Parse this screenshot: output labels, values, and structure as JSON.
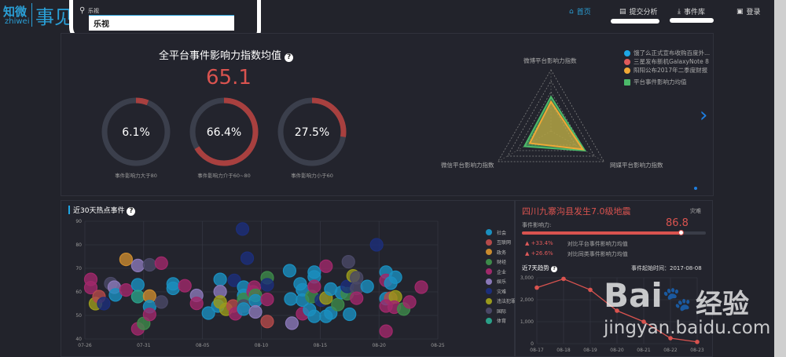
{
  "header": {
    "logo_cn": "知微",
    "logo_en": "zhiwei",
    "logo_brand": "事见",
    "search_label": "乐视",
    "search_value": "乐视",
    "nav": [
      {
        "label": "首页",
        "icon": "home-icon"
      },
      {
        "label": "提交分析",
        "icon": "document-edit-icon"
      },
      {
        "label": "事件库",
        "icon": "download-icon"
      },
      {
        "label": "登录",
        "icon": "user-icon"
      }
    ]
  },
  "summary": {
    "title": "全平台事件影响力指数均值",
    "value": "65.1",
    "gauges": [
      {
        "pct_text": "6.1%",
        "pct": 6.1,
        "label": "事件影响力大于80"
      },
      {
        "pct_text": "66.4%",
        "pct": 66.4,
        "label": "事件影响力介于60~80"
      },
      {
        "pct_text": "27.5%",
        "pct": 27.5,
        "label": "事件影响力小于60"
      }
    ]
  },
  "radar": {
    "axes": [
      "微博平台影响力指数",
      "网媒平台影响力指数",
      "微信平台影响力指数"
    ],
    "legend": [
      {
        "name": "饿了么正式宣布收购百度外...",
        "color": "#1ea7e6"
      },
      {
        "name": "三星发布新机GalaxyNote 8",
        "color": "#e05a5a"
      },
      {
        "name": "阳阳公布2017年二季度财报",
        "color": "#f0a836"
      },
      {
        "name": "平台事件影响力均值",
        "color": "#4cba6a"
      }
    ],
    "series": [
      {
        "name": "平台事件影响力均值",
        "values": [
          0.56,
          0.64,
          0.5
        ],
        "color": "#4cba6a"
      },
      {
        "name": "阳阳公布2017年二季度财报",
        "values": [
          0.48,
          0.6,
          0.4
        ],
        "color": "#f0a836"
      }
    ]
  },
  "hot": {
    "title": "近30天热点事件",
    "chart_data": {
      "type": "scatter",
      "title": "近30天热点事件",
      "x_ticks": [
        "07-26",
        "07-31",
        "08-05",
        "08-10",
        "08-15",
        "08-20",
        "08-25"
      ],
      "y_ticks": [
        "40",
        "50",
        "60",
        "70",
        "80",
        "90"
      ],
      "ylim": [
        40,
        90
      ],
      "xlim_days": [
        0,
        30
      ],
      "categories": [
        {
          "name": "社会",
          "color": "#1a8fbf"
        },
        {
          "name": "互联网",
          "color": "#b44a4a"
        },
        {
          "name": "政务",
          "color": "#c98a2e"
        },
        {
          "name": "财经",
          "color": "#3d8a4a"
        },
        {
          "name": "企业",
          "color": "#a0286a"
        },
        {
          "name": "娱乐",
          "color": "#8a78b8"
        },
        {
          "name": "灾难",
          "color": "#1c2e7a"
        },
        {
          "name": "违法犯罪",
          "color": "#9a9a1c"
        },
        {
          "name": "国际",
          "color": "#4a4866"
        },
        {
          "name": "体育",
          "color": "#2aa088"
        }
      ],
      "points": [
        [
          0.5,
          65.3,
          4
        ],
        [
          0.5,
          61.8,
          4
        ],
        [
          0.9,
          55,
          7
        ],
        [
          1.2,
          58,
          1
        ],
        [
          1.6,
          55,
          6
        ],
        [
          2.2,
          63.5,
          8
        ],
        [
          2.5,
          62,
          5
        ],
        [
          2.6,
          58.7,
          0
        ],
        [
          3.5,
          73.8,
          2
        ],
        [
          3.5,
          60.8,
          4
        ],
        [
          4.5,
          71.2,
          5
        ],
        [
          4.5,
          63,
          0
        ],
        [
          4.5,
          58,
          9
        ],
        [
          4.5,
          44.3,
          4
        ],
        [
          5,
          46.6,
          3
        ],
        [
          5.5,
          71.5,
          8
        ],
        [
          6.5,
          72.2,
          4
        ],
        [
          5.5,
          58.2,
          2
        ],
        [
          5.5,
          53.7,
          0
        ],
        [
          5.5,
          50.4,
          4
        ],
        [
          6.5,
          55.7,
          8
        ],
        [
          7.5,
          63.4,
          0
        ],
        [
          7.5,
          61.5,
          0
        ],
        [
          8.5,
          62.6,
          4
        ],
        [
          9.5,
          58.5,
          5
        ],
        [
          9.5,
          55.1,
          4
        ],
        [
          10.5,
          51,
          0
        ],
        [
          11.3,
          54,
          0
        ],
        [
          11.5,
          65.3,
          0
        ],
        [
          11.5,
          60.1,
          5
        ],
        [
          11.5,
          55.7,
          7
        ],
        [
          12,
          52.6,
          7
        ],
        [
          12.6,
          54,
          1
        ],
        [
          12.8,
          50.7,
          4
        ],
        [
          12.7,
          64.9,
          6
        ],
        [
          13.4,
          86.7,
          6
        ],
        [
          13.8,
          74.3,
          6
        ],
        [
          13.5,
          62,
          0
        ],
        [
          13.5,
          58.5,
          0
        ],
        [
          13.5,
          56.8,
          3
        ],
        [
          13.5,
          54,
          8
        ],
        [
          13.5,
          52.7,
          0
        ],
        [
          14.4,
          62,
          4
        ],
        [
          14.3,
          60,
          4
        ],
        [
          14.5,
          58.5,
          3
        ],
        [
          14.5,
          56.2,
          0
        ],
        [
          14.5,
          51.5,
          5
        ],
        [
          15.5,
          66,
          3
        ],
        [
          15.5,
          63,
          6
        ],
        [
          15.5,
          56.8,
          4
        ],
        [
          15.5,
          47.4,
          1
        ],
        [
          17.4,
          69,
          0
        ],
        [
          17.5,
          57,
          0
        ],
        [
          17.6,
          46.7,
          5
        ],
        [
          18.3,
          63.4,
          0
        ],
        [
          18.5,
          60.9,
          0
        ],
        [
          18.5,
          56.5,
          0
        ],
        [
          18.5,
          50.7,
          4
        ],
        [
          19.1,
          52.4,
          0
        ],
        [
          19.3,
          58,
          3
        ],
        [
          19.5,
          68.4,
          0
        ],
        [
          19.5,
          66.4,
          0
        ],
        [
          19.5,
          62.3,
          4
        ],
        [
          19.5,
          49.6,
          0
        ],
        [
          20.1,
          56.5,
          6
        ],
        [
          20.5,
          70.9,
          4
        ],
        [
          20.5,
          57.4,
          7
        ],
        [
          20.5,
          49.6,
          0
        ],
        [
          20.9,
          61.2,
          0
        ],
        [
          20.9,
          51,
          0
        ],
        [
          21.5,
          54.6,
          3
        ],
        [
          21.8,
          59.7,
          0
        ],
        [
          22.3,
          59.2,
          3
        ],
        [
          22.3,
          62.3,
          6
        ],
        [
          22.5,
          50.5,
          0
        ],
        [
          22.4,
          72.8,
          8
        ],
        [
          22.8,
          66.8,
          7
        ],
        [
          23.1,
          66,
          8
        ],
        [
          23.1,
          61.5,
          8
        ],
        [
          23.1,
          57.3,
          4
        ],
        [
          24,
          62.3,
          0
        ],
        [
          24.8,
          80,
          6
        ],
        [
          25.6,
          68.4,
          0
        ],
        [
          25.6,
          64.9,
          4
        ],
        [
          26,
          63.7,
          0
        ],
        [
          26.4,
          66.2,
          0
        ],
        [
          25.6,
          57.1,
          0
        ],
        [
          26,
          57.3,
          1
        ],
        [
          26.4,
          57.9,
          7
        ],
        [
          25.6,
          54,
          4
        ],
        [
          26.3,
          53.5,
          4
        ],
        [
          27.1,
          52.7,
          3
        ],
        [
          27.6,
          55.7,
          4
        ],
        [
          28.6,
          62,
          4
        ],
        [
          25.6,
          43.3,
          4
        ]
      ]
    }
  },
  "event": {
    "title": "四川九寨沟县发生7.0级地震",
    "tag": "灾难",
    "impact_label": "事件影响力:",
    "impact_value": "86.8",
    "impact_pct": 86.8,
    "compare": [
      {
        "delta": "+33.4%",
        "label": "对比平台事件影响力均值"
      },
      {
        "delta": "+26.6%",
        "label": "对比同类事件影响力均值"
      }
    ],
    "trend_title": "近7天趋势",
    "start_label": "事件起始时间：2017-08-08",
    "chart_data": {
      "type": "line",
      "x": [
        "08-17",
        "08-18",
        "08-19",
        "08-20",
        "08-21",
        "08-22",
        "08-23"
      ],
      "values": [
        2550,
        2950,
        2450,
        1500,
        1000,
        250,
        80
      ],
      "y_ticks": [
        "0",
        "1,000",
        "2,000",
        "3,000"
      ],
      "ylim": [
        0,
        3000
      ]
    }
  },
  "watermark": {
    "brand": "Bai du 经验",
    "url": "jingyan.baidu.com"
  }
}
